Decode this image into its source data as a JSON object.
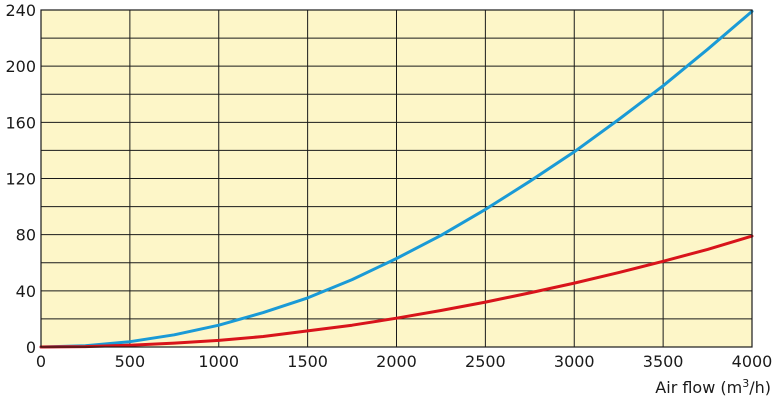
{
  "chart_data": {
    "type": "line",
    "x": [
      0,
      250,
      500,
      750,
      1000,
      1250,
      1500,
      1750,
      2000,
      2250,
      2500,
      2750,
      3000,
      3250,
      3500,
      3750,
      4000
    ],
    "series": [
      {
        "values": [
          0,
          0.9,
          3.8,
          8.7,
          15.5,
          24.5,
          35,
          48,
          63,
          79.5,
          98,
          118,
          139,
          162,
          186,
          212,
          239
        ],
        "color": "#1a9ad6"
      },
      {
        "values": [
          0,
          0.3,
          1.3,
          2.8,
          4.7,
          7.5,
          11.5,
          15.5,
          20.5,
          26,
          32,
          38.5,
          45.5,
          53,
          61,
          69.5,
          79
        ],
        "color": "#d8141b"
      }
    ],
    "xlim": [
      0,
      4000
    ],
    "ylim": [
      0,
      240
    ],
    "x_ticks": [
      "0",
      "500",
      "1000",
      "1500",
      "2000",
      "2500",
      "3000",
      "3500",
      "4000"
    ],
    "y_ticks": [
      "0",
      "40",
      "80",
      "120",
      "160",
      "200",
      "240"
    ],
    "xlabel_text": "Air flow (m",
    "xlabel_sup": "3",
    "xlabel_tail": "/h)",
    "ylabel": "",
    "grid": true,
    "plot_background": "#fdf6c8"
  }
}
